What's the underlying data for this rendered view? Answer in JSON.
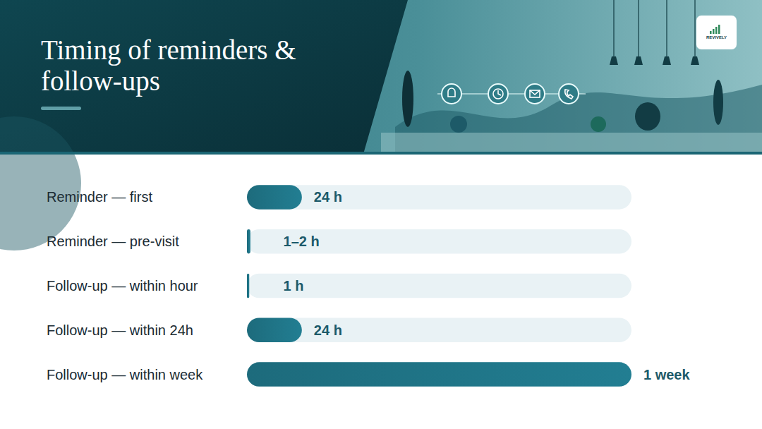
{
  "chart_data": {
    "type": "bar",
    "orientation": "horizontal",
    "title": "Timing of reminders & follow-ups",
    "annotations": [
      "REVIVELY"
    ],
    "categories": [
      "Reminder — first",
      "Reminder — pre-visit",
      "Follow-up — within hour",
      "Follow-up — within 24h",
      "Follow-up — within week"
    ],
    "values": [
      24,
      1.5,
      1,
      24,
      168
    ],
    "value_labels": [
      "24 h",
      "1–2 h",
      "1 h",
      "24 h",
      "1 week"
    ],
    "xlim": [
      0,
      168
    ],
    "data_labels": true,
    "tick_labels": false,
    "grid": false,
    "color": "#1d6b7c"
  }
}
